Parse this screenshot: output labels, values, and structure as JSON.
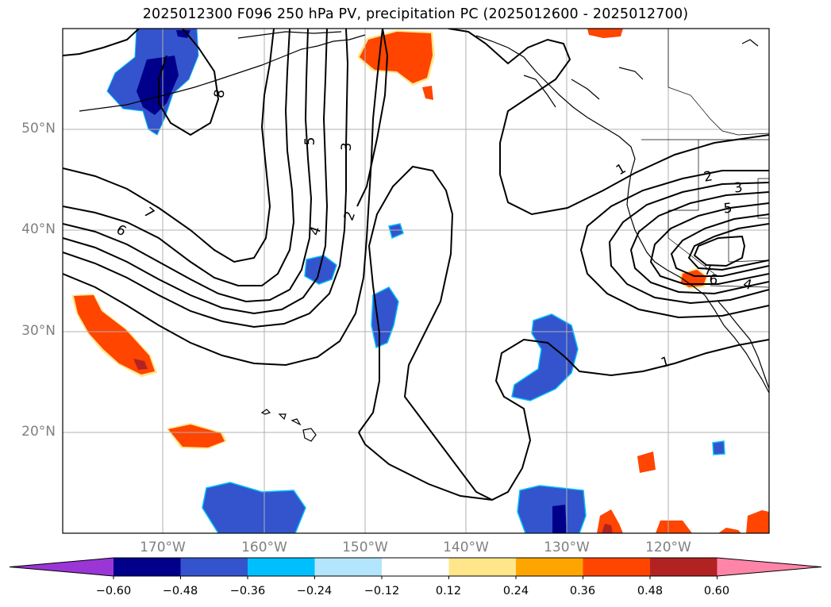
{
  "title": "2025012300 F096 250 hPa PV, precipitation PC (2025012600 - 2025012700)",
  "latitude_labels": [
    "50°N",
    "40°N",
    "30°N",
    "20°N"
  ],
  "longitude_labels": [
    "170°W",
    "160°W",
    "150°W",
    "140°W",
    "130°W",
    "120°W"
  ],
  "contour_labels": [
    {
      "text": "8",
      "rot": -80
    },
    {
      "text": "5",
      "rot": -90
    },
    {
      "text": "3",
      "rot": -85
    },
    {
      "text": "2",
      "rot": -70
    },
    {
      "text": "4",
      "rot": -70
    },
    {
      "text": "7",
      "rot": 40
    },
    {
      "text": "6",
      "rot": 30
    },
    {
      "text": "1",
      "rot": -30
    },
    {
      "text": "2",
      "rot": -10
    },
    {
      "text": "3",
      "rot": -8
    },
    {
      "text": "5",
      "rot": -5
    },
    {
      "text": "7",
      "rot": 0
    },
    {
      "text": "6",
      "rot": 5
    },
    {
      "text": "4",
      "rot": 15
    },
    {
      "text": "1",
      "rot": -15
    }
  ],
  "colorbar": {
    "ticks": [
      "−0.60",
      "−0.48",
      "−0.36",
      "−0.24",
      "−0.12",
      "0.12",
      "0.24",
      "0.36",
      "0.48",
      "0.60"
    ],
    "colors": [
      "#9a36d6",
      "#00008b",
      "#3354cc",
      "#00bfff",
      "#b3e5fc",
      "#ffffff",
      "#ffe68a",
      "#ffa500",
      "#ff4500",
      "#b22222",
      "#ff85a8"
    ]
  }
}
